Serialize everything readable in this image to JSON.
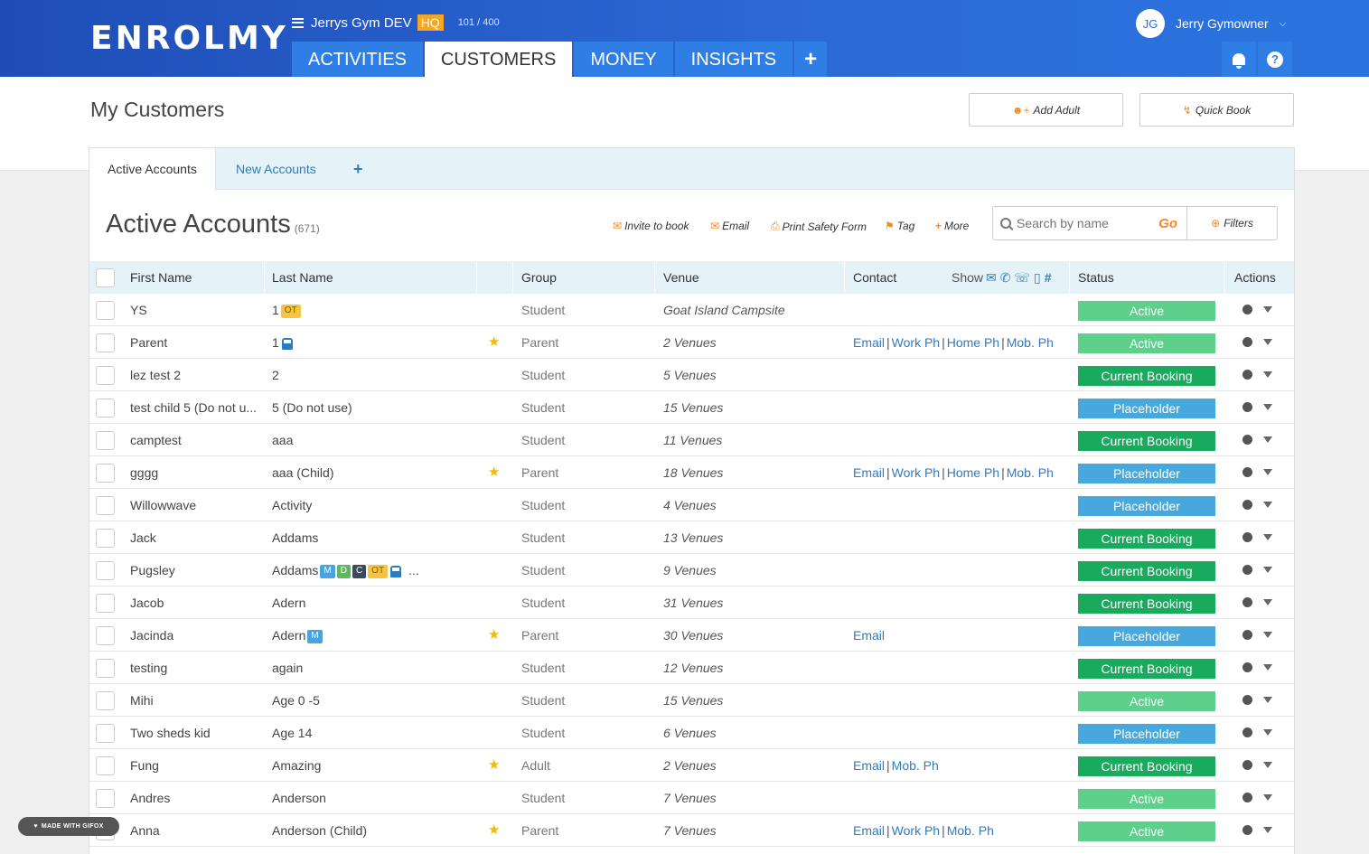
{
  "header": {
    "logo": "ENROLMY",
    "gym_name": "Jerrys Gym DEV",
    "hq_badge": "HQ",
    "gym_count": "101 / 400",
    "tabs": [
      {
        "label": "ACTIVITIES"
      },
      {
        "label": "CUSTOMERS"
      },
      {
        "label": "MONEY"
      },
      {
        "label": "INSIGHTS"
      },
      {
        "label": "+"
      }
    ],
    "user": {
      "initials": "JG",
      "name": "Jerry Gymowner"
    },
    "help": "?"
  },
  "page": {
    "title": "My Customers",
    "add_adult": "Add Adult",
    "quick_book": "Quick Book"
  },
  "subtabs": [
    {
      "label": "Active Accounts"
    },
    {
      "label": "New Accounts"
    },
    {
      "label": "+"
    }
  ],
  "accounts": {
    "title": "Active Accounts",
    "count": "(671)",
    "actions": {
      "invite": "Invite to book",
      "email": "Email",
      "print": "Print Safety Form",
      "tag": "Tag",
      "more": "More"
    },
    "search": {
      "placeholder": "Search by name",
      "go": "Go"
    },
    "filters": "Filters"
  },
  "table": {
    "headers": {
      "first_name": "First Name",
      "last_name": "Last Name",
      "group": "Group",
      "venue": "Venue",
      "contact": "Contact",
      "show": "Show",
      "status": "Status",
      "actions": "Actions"
    },
    "rows": [
      {
        "first": "YS",
        "last": "1",
        "star": false,
        "group": "Student",
        "venue": "Goat Island Campsite",
        "contact": [],
        "status": "Active"
      },
      {
        "first": "Parent",
        "last": "1",
        "star": true,
        "group": "Parent",
        "venue": "2 Venues",
        "contact": [
          "Email",
          "Work Ph",
          "Home Ph",
          "Mob. Ph"
        ],
        "status": "Active"
      },
      {
        "first": "lez test 2",
        "last": "2",
        "star": false,
        "group": "Student",
        "venue": "5 Venues",
        "contact": [],
        "status": "Current Booking"
      },
      {
        "first": "test child 5 (Do not u...",
        "last": "5 (Do not use)",
        "star": false,
        "group": "Student",
        "venue": "15 Venues",
        "contact": [],
        "status": "Placeholder"
      },
      {
        "first": "camptest",
        "last": "aaa",
        "star": false,
        "group": "Student",
        "venue": "11 Venues",
        "contact": [],
        "status": "Current Booking"
      },
      {
        "first": "gggg",
        "last": "aaa (Child)",
        "star": true,
        "group": "Parent",
        "venue": "18 Venues",
        "contact": [
          "Email",
          "Work Ph",
          "Home Ph",
          "Mob. Ph"
        ],
        "status": "Placeholder"
      },
      {
        "first": "Willowwave",
        "last": "Activity",
        "star": false,
        "group": "Student",
        "venue": "4 Venues",
        "contact": [],
        "status": "Placeholder"
      },
      {
        "first": "Jack",
        "last": "Addams",
        "star": false,
        "group": "Student",
        "venue": "13 Venues",
        "contact": [],
        "status": "Current Booking"
      },
      {
        "first": "Pugsley",
        "last": "Addams",
        "star": false,
        "group": "Student",
        "venue": "9 Venues",
        "contact": [],
        "status": "Current Booking"
      },
      {
        "first": "Jacob",
        "last": "Adern",
        "star": false,
        "group": "Student",
        "venue": "31 Venues",
        "contact": [],
        "status": "Current Booking"
      },
      {
        "first": "Jacinda",
        "last": "Adern",
        "star": true,
        "group": "Parent",
        "venue": "30 Venues",
        "contact": [
          "Email"
        ],
        "status": "Placeholder"
      },
      {
        "first": "testing",
        "last": "again",
        "star": false,
        "group": "Student",
        "venue": "12 Venues",
        "contact": [],
        "status": "Current Booking"
      },
      {
        "first": "Mihi",
        "last": "Age 0 -5",
        "star": false,
        "group": "Student",
        "venue": "15 Venues",
        "contact": [],
        "status": "Active"
      },
      {
        "first": "Two sheds kid",
        "last": "Age 14",
        "star": false,
        "group": "Student",
        "venue": "6 Venues",
        "contact": [],
        "status": "Placeholder"
      },
      {
        "first": "Fung",
        "last": "Amazing",
        "star": true,
        "group": "Adult",
        "venue": "2 Venues",
        "contact": [
          "Email",
          "Mob. Ph"
        ],
        "status": "Current Booking"
      },
      {
        "first": "Andres",
        "last": "Anderson",
        "star": false,
        "group": "Student",
        "venue": "7 Venues",
        "contact": [],
        "status": "Active"
      },
      {
        "first": "Anna",
        "last": "Anderson (Child)",
        "star": true,
        "group": "Parent",
        "venue": "7 Venues",
        "contact": [
          "Email",
          "Work Ph",
          "Mob. Ph"
        ],
        "status": "Active"
      }
    ],
    "badges": {
      "row0": [
        {
          "text": "OT",
          "color": "#f5c542",
          "fg": "#7a5a00"
        }
      ],
      "row8": [
        {
          "text": "M",
          "color": "#4aa3df"
        },
        {
          "text": "D",
          "color": "#5cb85c"
        },
        {
          "text": "C",
          "color": "#3a4a5a"
        },
        {
          "text": "OT",
          "color": "#f5c542",
          "fg": "#7a5a00"
        }
      ],
      "row10": [
        {
          "text": "M",
          "color": "#4aa3df"
        }
      ],
      "more": "..."
    }
  },
  "status_colors": {
    "Active": "#5fcf8c",
    "Current Booking": "#1aaa5e",
    "Placeholder": "#47a8dd"
  },
  "watermark": "MADE WITH GIFOX"
}
